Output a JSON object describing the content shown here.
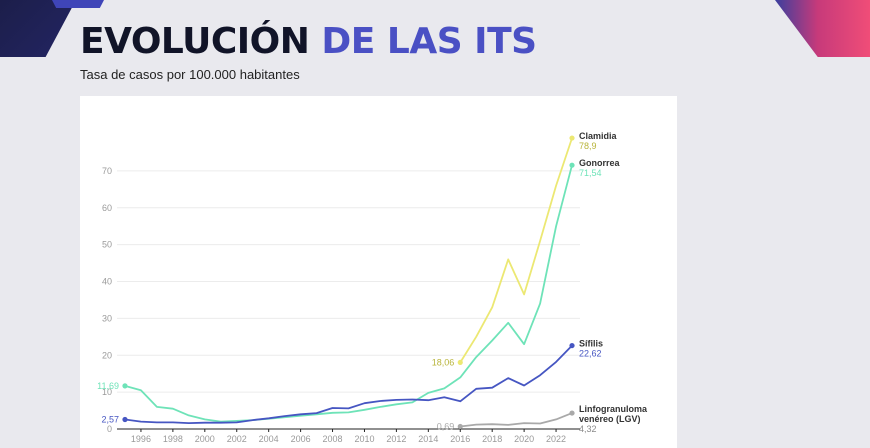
{
  "header": {
    "title_part1": "EVOLUCIÓN ",
    "title_part2": "DE LAS ITS",
    "subtitle": "Tasa de casos por 100.000 habitantes"
  },
  "colors": {
    "title_dark": "#111428",
    "title_accent": "#4a50c4",
    "clamidia": "#ece873",
    "gonorrea": "#6ee3b8",
    "sifilis": "#4656c2",
    "lgv": "#a9a9a9"
  },
  "chart_data": {
    "type": "line",
    "title": "Tasa de casos por 100.000 habitantes",
    "xlim": [
      1994.5,
      2023.5
    ],
    "ylim": [
      0,
      80
    ],
    "yticks": [
      0,
      10,
      20,
      30,
      40,
      50,
      60,
      70
    ],
    "xticks": [
      "1996",
      "1998",
      "2000",
      "2002",
      "2004",
      "2006",
      "2008",
      "2010",
      "2012",
      "2014",
      "2016",
      "2018",
      "2020",
      "2022"
    ],
    "grid": "horizontal",
    "series": [
      {
        "name": "Clamidia",
        "color": "#ece873",
        "points": [
          [
            2016,
            18.06
          ],
          [
            2017,
            25
          ],
          [
            2018,
            33
          ],
          [
            2019,
            46
          ],
          [
            2020,
            36.5
          ],
          [
            2021,
            51
          ],
          [
            2022,
            66
          ],
          [
            2023,
            78.9
          ]
        ],
        "start_label": "18,06",
        "end_label": "78,9"
      },
      {
        "name": "Gonorrea",
        "color": "#6ee3b8",
        "points": [
          [
            1995,
            11.69
          ],
          [
            1996,
            10.5
          ],
          [
            1997,
            6
          ],
          [
            1998,
            5.5
          ],
          [
            1999,
            3.7
          ],
          [
            2000,
            2.6
          ],
          [
            2001,
            2
          ],
          [
            2002,
            2.2
          ],
          [
            2003,
            2.4
          ],
          [
            2004,
            2.8
          ],
          [
            2005,
            3.2
          ],
          [
            2006,
            3.6
          ],
          [
            2007,
            4
          ],
          [
            2008,
            4.4
          ],
          [
            2009,
            4.5
          ],
          [
            2010,
            5.2
          ],
          [
            2011,
            6
          ],
          [
            2012,
            6.7
          ],
          [
            2013,
            7.2
          ],
          [
            2014,
            9.8
          ],
          [
            2015,
            11
          ],
          [
            2016,
            14
          ],
          [
            2017,
            19.5
          ],
          [
            2018,
            24
          ],
          [
            2019,
            28.8
          ],
          [
            2020,
            23
          ],
          [
            2021,
            34
          ],
          [
            2022,
            55
          ],
          [
            2023,
            71.54
          ]
        ],
        "start_label": "11,69",
        "end_label": "71,54"
      },
      {
        "name": "Sífilis",
        "color": "#4656c2",
        "points": [
          [
            1995,
            2.57
          ],
          [
            1996,
            2
          ],
          [
            1997,
            1.8
          ],
          [
            1998,
            1.8
          ],
          [
            1999,
            1.6
          ],
          [
            2000,
            1.7
          ],
          [
            2001,
            1.7
          ],
          [
            2002,
            1.8
          ],
          [
            2003,
            2.4
          ],
          [
            2004,
            2.9
          ],
          [
            2005,
            3.5
          ],
          [
            2006,
            4
          ],
          [
            2007,
            4.3
          ],
          [
            2008,
            5.7
          ],
          [
            2009,
            5.6
          ],
          [
            2010,
            7
          ],
          [
            2011,
            7.6
          ],
          [
            2012,
            7.9
          ],
          [
            2013,
            8
          ],
          [
            2014,
            7.8
          ],
          [
            2015,
            8.6
          ],
          [
            2016,
            7.5
          ],
          [
            2017,
            10.9
          ],
          [
            2018,
            11.2
          ],
          [
            2019,
            13.8
          ],
          [
            2020,
            11.8
          ],
          [
            2021,
            14.6
          ],
          [
            2022,
            18.2
          ],
          [
            2023,
            22.62
          ]
        ],
        "start_label": "2,57",
        "end_label": "22,62"
      },
      {
        "name": "Linfogranuloma venéreo (LGV)",
        "name_line1": "Linfogranuloma",
        "name_line2": "venéreo (LGV)",
        "color": "#a9a9a9",
        "points": [
          [
            2016,
            0.69
          ],
          [
            2017,
            1.2
          ],
          [
            2018,
            1.3
          ],
          [
            2019,
            1.1
          ],
          [
            2020,
            1.6
          ],
          [
            2021,
            1.5
          ],
          [
            2022,
            2.6
          ],
          [
            2023,
            4.32
          ]
        ],
        "start_label": "0,69",
        "end_label": "4,32"
      }
    ]
  }
}
